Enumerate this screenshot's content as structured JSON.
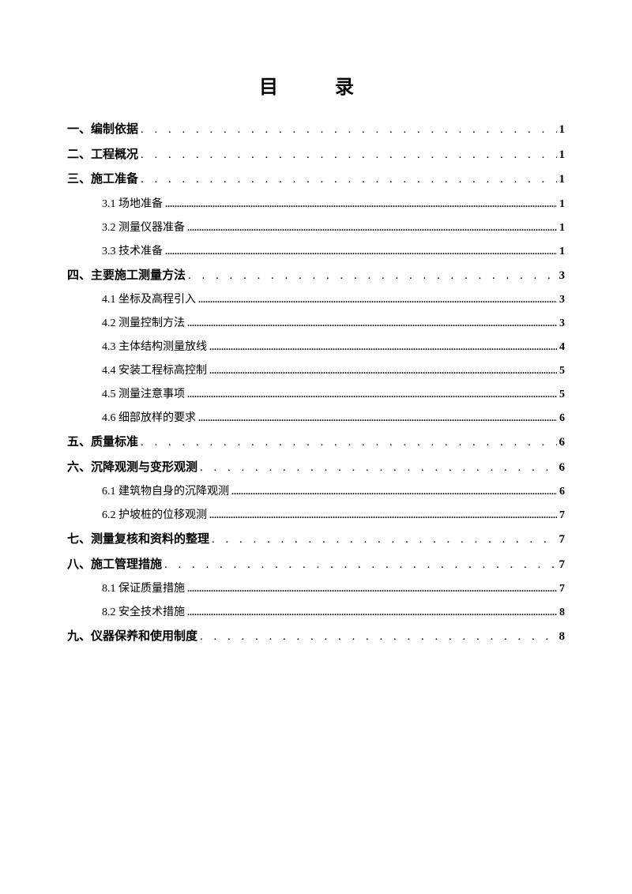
{
  "title": "目　录",
  "entries": [
    {
      "level": 1,
      "label": "一、编制依据",
      "page": "1"
    },
    {
      "level": 1,
      "label": "二、工程概况",
      "page": "1"
    },
    {
      "level": 1,
      "label": "三、施工准备",
      "page": "1"
    },
    {
      "level": 2,
      "label": "3.1 场地准备",
      "page": "1"
    },
    {
      "level": 2,
      "label": "3.2 测量仪器准备",
      "page": "1"
    },
    {
      "level": 2,
      "label": "3.3 技术准备",
      "page": "1"
    },
    {
      "level": 1,
      "label": "四、主要施工测量方法",
      "page": "3"
    },
    {
      "level": 2,
      "label": "4.1 坐标及高程引入",
      "page": "3"
    },
    {
      "level": 2,
      "label": "4.2 测量控制方法",
      "page": "3"
    },
    {
      "level": 2,
      "label": "4.3 主体结构测量放线",
      "page": "4"
    },
    {
      "level": 2,
      "label": "4.4 安装工程标高控制",
      "page": "5"
    },
    {
      "level": 2,
      "label": "4.5 测量注意事项",
      "page": "5"
    },
    {
      "level": 2,
      "label": "4.6 细部放样的要求",
      "page": "6"
    },
    {
      "level": 1,
      "label": "五、质量标准",
      "page": "6"
    },
    {
      "level": 1,
      "label": "六、沉降观测与变形观测",
      "page": "6"
    },
    {
      "level": 2,
      "label": "6.1 建筑物自身的沉降观测",
      "page": "6"
    },
    {
      "level": 2,
      "label": "6.2 护坡桩的位移观测",
      "page": "7"
    },
    {
      "level": 1,
      "label": "七、测量复核和资料的整理",
      "page": "7"
    },
    {
      "level": 1,
      "label": "八、施工管理措施",
      "page": "7"
    },
    {
      "level": 2,
      "label": "8.1 保证质量措施",
      "page": "7"
    },
    {
      "level": 2,
      "label": "8.2 安全技术措施",
      "page": "8"
    },
    {
      "level": 1,
      "label": "九、仪器保养和使用制度",
      "page": "8"
    }
  ],
  "leader_dots_l1": ". . . . . . . . . . . . . . . . . . . . . . . . . . . . . . . . . . . . . . . . . . . . . . . . . . . . . . . . . . . . . . . . . . . . . . . . . . . . . . . . . . . . . . . . . . . . . . . . . . . . . . . . . . . . . . . . . . . . . . . .",
  "leader_dots_l2": "..............................................................................................................................................................................................................................................................."
}
